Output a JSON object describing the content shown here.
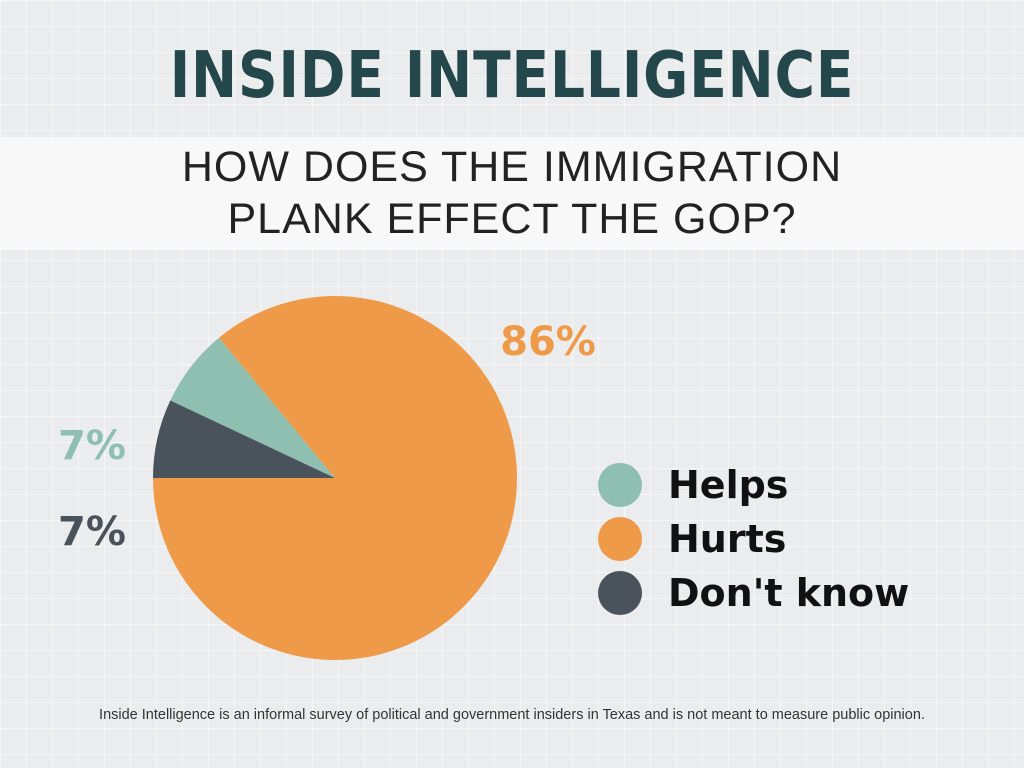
{
  "header": {
    "title": "INSIDE INTELLIGENCE",
    "question_line1": "HOW DOES THE IMMIGRATION",
    "question_line2": "PLANK EFFECT THE GOP?"
  },
  "chart_data": {
    "type": "pie",
    "title": "HOW DOES THE IMMIGRATION PLANK EFFECT THE GOP?",
    "categories": [
      "Helps",
      "Hurts",
      "Don't know"
    ],
    "values": [
      7,
      86,
      7
    ],
    "labels": [
      "7%",
      "86%",
      "7%"
    ],
    "colors": [
      "#8fbfb0",
      "#ee9a48",
      "#4a525c"
    ],
    "legend_position": "right"
  },
  "footnote": "Inside Intelligence is an informal survey of political and government insiders in Texas and is not meant to measure public opinion."
}
